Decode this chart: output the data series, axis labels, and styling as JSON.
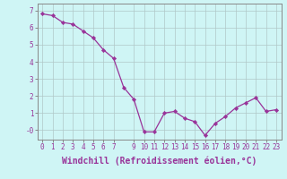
{
  "x": [
    0,
    1,
    2,
    3,
    4,
    5,
    6,
    7,
    8,
    9,
    10,
    11,
    12,
    13,
    14,
    15,
    16,
    17,
    18,
    19,
    20,
    21,
    22,
    23
  ],
  "y": [
    6.8,
    6.7,
    6.3,
    6.2,
    5.8,
    5.4,
    4.7,
    4.2,
    2.5,
    1.8,
    -0.1,
    -0.1,
    1.0,
    1.1,
    0.7,
    0.5,
    -0.3,
    0.4,
    0.8,
    1.3,
    1.6,
    1.9,
    1.1,
    1.2
  ],
  "line_color": "#993399",
  "marker": "D",
  "marker_size": 2.2,
  "background_color": "#cff5f5",
  "grid_color": "#b0c8c8",
  "xlabel": "Windchill (Refroidissement éolien,°C)",
  "ylabel": "",
  "ylim": [
    -0.55,
    7.4
  ],
  "xlim": [
    -0.5,
    23.5
  ],
  "yticks": [
    0,
    1,
    2,
    3,
    4,
    5,
    6,
    7
  ],
  "ytick_labels": [
    "-0",
    "1",
    "2",
    "3",
    "4",
    "5",
    "6",
    "7"
  ],
  "xticks": [
    0,
    1,
    2,
    3,
    4,
    5,
    6,
    7,
    9,
    10,
    11,
    12,
    13,
    14,
    15,
    16,
    17,
    18,
    19,
    20,
    21,
    22,
    23
  ],
  "tick_fontsize": 5.5,
  "xlabel_fontsize": 7.0,
  "axis_color": "#993399",
  "spine_color": "#888888",
  "linewidth": 0.9
}
